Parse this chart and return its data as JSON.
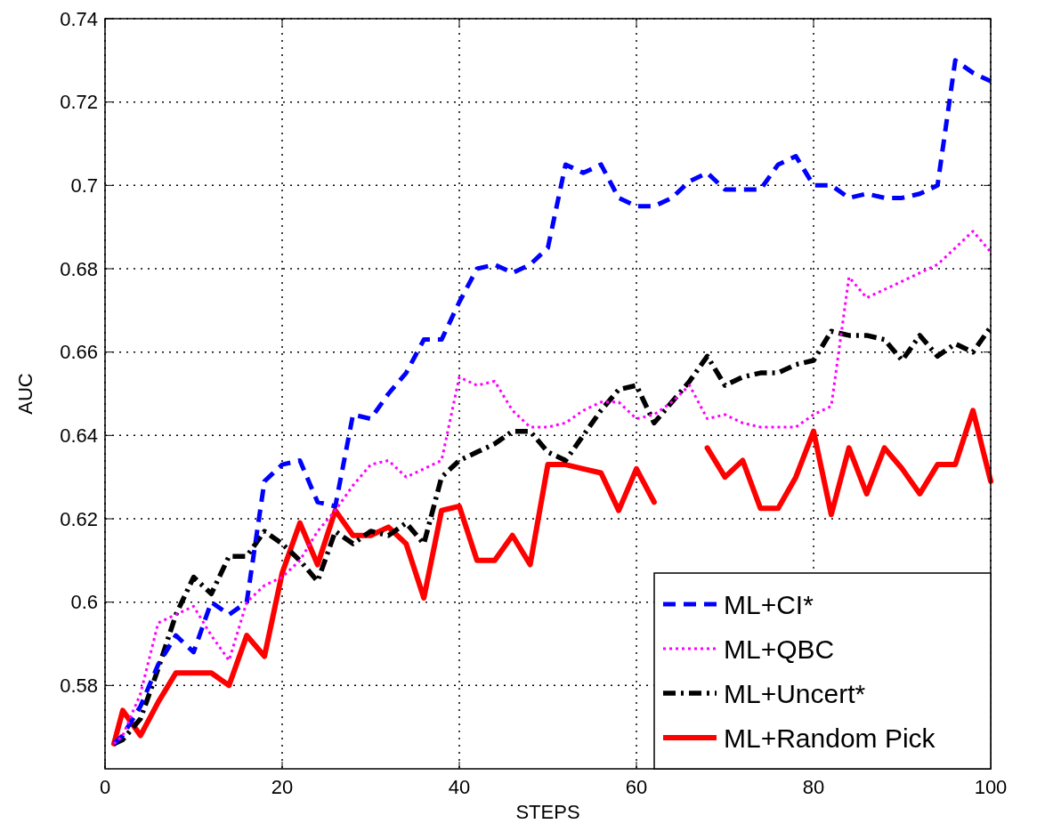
{
  "chart_data": {
    "type": "line",
    "xlabel": "STEPS",
    "ylabel": "AUC",
    "x": [
      1,
      2,
      4,
      6,
      8,
      10,
      12,
      14,
      16,
      18,
      20,
      22,
      24,
      26,
      28,
      30,
      32,
      34,
      36,
      38,
      40,
      42,
      44,
      46,
      48,
      50,
      52,
      54,
      56,
      58,
      60,
      62,
      64,
      66,
      68,
      70,
      72,
      74,
      76,
      78,
      80,
      82,
      84,
      86,
      88,
      90,
      92,
      94,
      96,
      98,
      100
    ],
    "series": [
      {
        "name": "ML+CI*",
        "color": "#0000ff",
        "line_style": "dashed",
        "values": [
          0.566,
          0.568,
          0.575,
          0.585,
          0.592,
          0.588,
          0.6,
          0.597,
          0.6,
          0.629,
          0.633,
          0.634,
          0.624,
          0.623,
          0.645,
          0.644,
          0.65,
          0.655,
          0.663,
          0.663,
          0.672,
          0.68,
          0.681,
          0.679,
          0.681,
          0.685,
          0.705,
          0.703,
          0.705,
          0.697,
          0.695,
          0.695,
          0.697,
          0.701,
          0.703,
          0.699,
          0.699,
          0.699,
          0.705,
          0.707,
          0.7,
          0.7,
          0.697,
          0.698,
          0.697,
          0.697,
          0.698,
          0.7,
          0.73,
          0.727,
          0.725
        ]
      },
      {
        "name": "ML+QBC",
        "color": "#ff00ff",
        "line_style": "dotted",
        "values": [
          0.566,
          0.568,
          0.578,
          0.595,
          0.597,
          0.599,
          0.592,
          0.586,
          0.6,
          0.604,
          0.606,
          0.61,
          0.617,
          0.622,
          0.628,
          0.633,
          0.634,
          0.63,
          0.632,
          0.634,
          0.654,
          0.652,
          0.653,
          0.646,
          0.642,
          0.642,
          0.643,
          0.646,
          0.648,
          0.648,
          0.644,
          0.645,
          0.648,
          0.652,
          0.644,
          0.645,
          0.643,
          0.642,
          0.642,
          0.642,
          0.645,
          0.647,
          0.678,
          0.673,
          0.675,
          0.677,
          0.679,
          0.681,
          0.685,
          0.689,
          0.684
        ]
      },
      {
        "name": "ML+Uncert*",
        "color": "#000000",
        "line_style": "dashdot",
        "values": [
          0.566,
          0.567,
          0.572,
          0.584,
          0.597,
          0.606,
          0.602,
          0.611,
          0.611,
          0.617,
          0.614,
          0.61,
          0.605,
          0.617,
          0.614,
          0.617,
          0.616,
          0.619,
          0.614,
          0.63,
          0.634,
          0.636,
          0.638,
          0.641,
          0.641,
          0.636,
          0.634,
          0.64,
          0.646,
          0.651,
          0.652,
          0.643,
          0.648,
          0.653,
          0.659,
          0.652,
          0.654,
          0.655,
          0.655,
          0.657,
          0.658,
          0.665,
          0.664,
          0.664,
          0.663,
          0.658,
          0.664,
          0.659,
          0.662,
          0.66,
          0.666
        ]
      },
      {
        "name": "ML+Random Pick",
        "color": "#ff0000",
        "line_style": "solid",
        "values": [
          0.566,
          0.574,
          0.568,
          0.576,
          0.583,
          0.583,
          0.583,
          0.58,
          0.592,
          0.587,
          0.607,
          0.619,
          0.609,
          0.622,
          0.616,
          0.616,
          0.618,
          0.614,
          0.601,
          0.622,
          0.623,
          0.61,
          0.61,
          0.616,
          0.609,
          0.633,
          0.633,
          0.632,
          0.631,
          0.622,
          0.632,
          0.624,
          null,
          null,
          0.637,
          0.63,
          0.634,
          0.6225,
          0.6225,
          0.63,
          0.641,
          0.621,
          0.637,
          0.626,
          0.637,
          0.632,
          0.626,
          0.633,
          0.633,
          0.646,
          0.629
        ]
      }
    ],
    "xlim": [
      0,
      100
    ],
    "xticks": [
      0,
      20,
      40,
      60,
      80,
      100
    ],
    "ylim": [
      0.56,
      0.74
    ],
    "yticks": [
      0.58,
      0.6,
      0.62,
      0.64,
      0.66,
      0.68,
      0.7,
      0.72,
      0.74
    ],
    "grid": true,
    "legend": "bottom right",
    "marker": "none"
  }
}
